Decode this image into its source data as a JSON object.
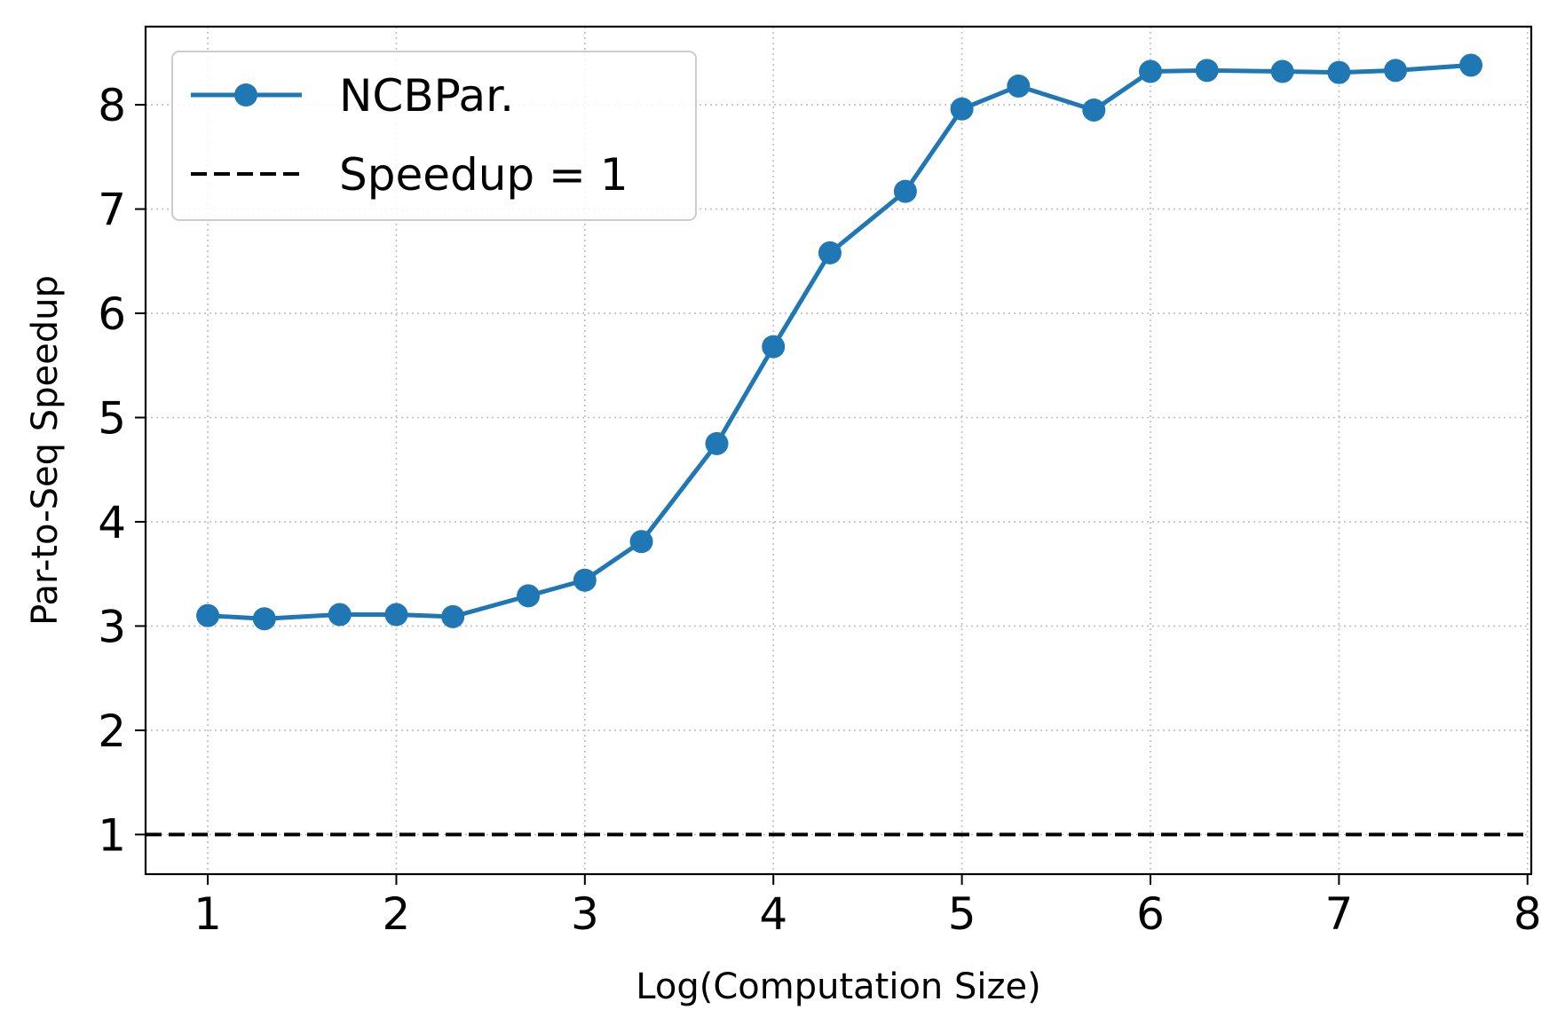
{
  "chart_data": {
    "type": "line",
    "xlabel": "Log(Computation Size)",
    "ylabel": "Par-to-Seq Speedup",
    "xlim": [
      0.67,
      8.02
    ],
    "ylim": [
      0.62,
      8.75
    ],
    "xticks": [
      1,
      2,
      3,
      4,
      5,
      6,
      7,
      8
    ],
    "yticks": [
      1,
      2,
      3,
      4,
      5,
      6,
      7,
      8
    ],
    "grid": true,
    "legend_position": "top-left",
    "series": [
      {
        "name": "NCBPar.",
        "color": "#1f77b4",
        "style": "solid",
        "marker": "circle",
        "x": [
          1.0,
          1.3,
          1.7,
          2.0,
          2.3,
          2.7,
          3.0,
          3.3,
          3.7,
          4.0,
          4.3,
          4.7,
          5.0,
          5.3,
          5.7,
          6.0,
          6.3,
          6.7,
          7.0,
          7.3,
          7.7
        ],
        "y": [
          3.1,
          3.07,
          3.11,
          3.11,
          3.09,
          3.29,
          3.44,
          3.81,
          4.75,
          5.68,
          6.58,
          7.17,
          7.96,
          8.18,
          7.95,
          8.32,
          8.33,
          8.32,
          8.31,
          8.33,
          8.38
        ]
      },
      {
        "name": "Speedup = 1",
        "color": "#000000",
        "style": "dashed",
        "y_constant": 1
      }
    ]
  }
}
